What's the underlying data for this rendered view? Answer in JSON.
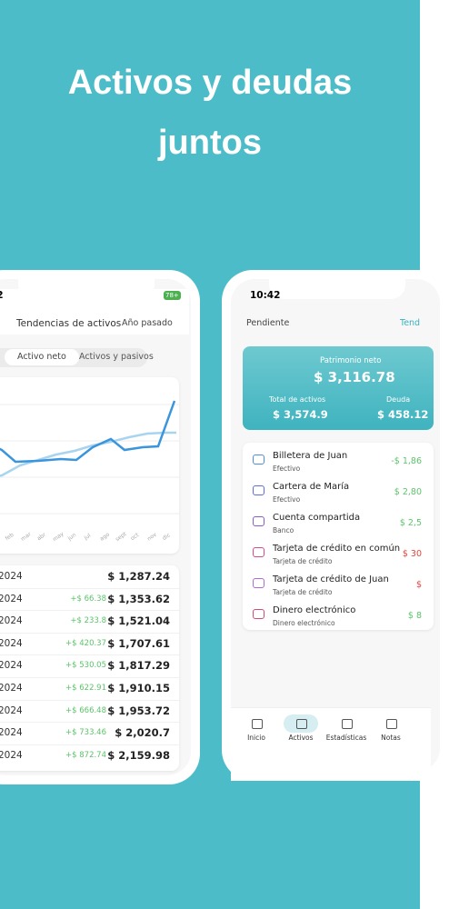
{
  "header": {
    "title": "Activos y deudas juntos"
  },
  "left_phone": {
    "status_time": "2",
    "battery": "78+",
    "screen_title": "Tendencias de activos",
    "period": "Año pasado",
    "tabs": [
      "Activo neto",
      "Activos y pasivos"
    ],
    "months": [
      "feb",
      "mar",
      "abr",
      "may",
      "jun",
      "jul",
      "ago",
      "sept",
      "oct",
      "nov",
      "dic"
    ],
    "rows": [
      {
        "date": "2024",
        "value": "$ 1,287.24"
      },
      {
        "date": "2024",
        "change": "+$ 66.38",
        "value": "$ 1,353.62"
      },
      {
        "date": "2024",
        "change": "+$ 233.8",
        "value": "$ 1,521.04"
      },
      {
        "date": "2024",
        "change": "+$ 420.37",
        "value": "$ 1,707.61"
      },
      {
        "date": "2024",
        "change": "+$ 530.05",
        "value": "$ 1,817.29"
      },
      {
        "date": "2024",
        "change": "+$ 622.91",
        "value": "$ 1,910.15"
      },
      {
        "date": "2024",
        "change": "+$ 666.48",
        "value": "$ 1,953.72"
      },
      {
        "date": "2024",
        "change": "+$ 733.46",
        "value": "$ 2,020.7"
      },
      {
        "date": "2024",
        "change": "+$ 872.74",
        "value": "$ 2,159.98"
      }
    ]
  },
  "right_phone": {
    "status_time": "10:42",
    "filter": "Pendiente",
    "trends_link": "Tend",
    "net_worth_label": "Patrimonio neto",
    "net_worth": "$ 3,116.78",
    "assets_label": "Total de activos",
    "assets": "$ 3,574.9",
    "debt_label": "Deuda",
    "debt": "$ 458.12",
    "accounts": [
      {
        "name": "Billetera de Juan",
        "type": "Efectivo",
        "amount": "-$ 1,86"
      },
      {
        "name": "Cartera de María",
        "type": "Efectivo",
        "amount": "$ 2,80"
      },
      {
        "name": "Cuenta compartida",
        "type": "Banco",
        "amount": "$ 2,5"
      },
      {
        "name": "Tarjeta de crédito en común",
        "type": "Tarjeta de crédito",
        "amount": "$ 30"
      },
      {
        "name": "Tarjeta de crédito de Juan",
        "type": "Tarjeta de crédito",
        "amount": "$"
      },
      {
        "name": "Dinero electrónico",
        "type": "Dinero electrónico",
        "amount": "$ 8"
      }
    ],
    "nav": [
      "Inicio",
      "Activos",
      "Estadísticas",
      "Notas"
    ]
  }
}
